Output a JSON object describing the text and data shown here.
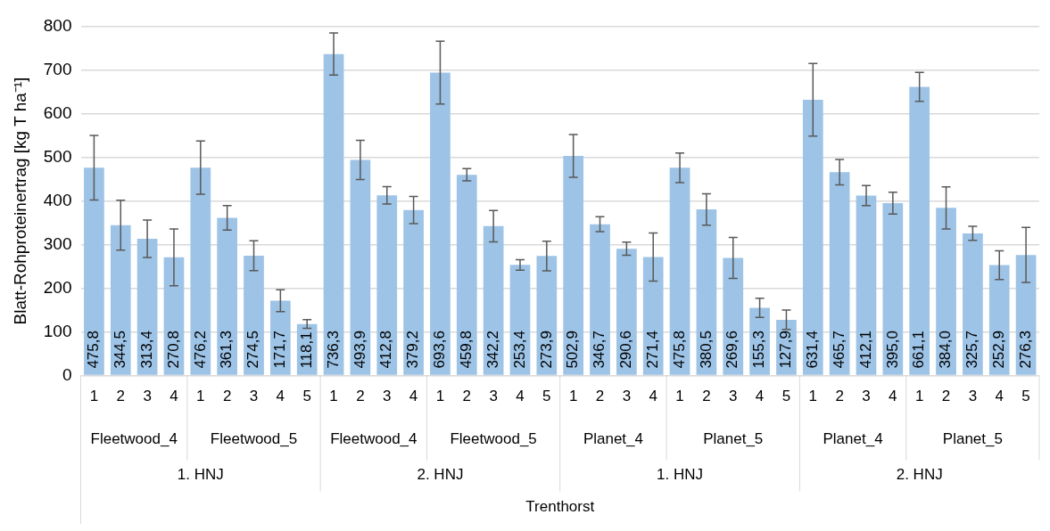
{
  "chart_data": {
    "type": "bar",
    "ylabel": "Blatt-Rohproteinertrag [kg T ha⁻¹]",
    "categories": [
      "1",
      "2",
      "3",
      "4",
      "1",
      "2",
      "3",
      "4",
      "5",
      "1",
      "2",
      "3",
      "4",
      "1",
      "2",
      "3",
      "4",
      "5",
      "1",
      "2",
      "3",
      "4",
      "1",
      "2",
      "3",
      "4",
      "5",
      "1",
      "2",
      "3",
      "4",
      "1",
      "2",
      "3",
      "4",
      "5"
    ],
    "values": [
      475.8,
      344.5,
      313.4,
      270.8,
      476.2,
      361.3,
      274.5,
      171.7,
      118.1,
      736.3,
      493.9,
      412.8,
      379.2,
      693.6,
      459.8,
      342.2,
      253.4,
      273.9,
      502.9,
      346.7,
      290.6,
      271.4,
      475.8,
      380.5,
      269.6,
      155.3,
      127.9,
      631.4,
      465.7,
      412.1,
      395.0,
      661.1,
      384.0,
      325.7,
      252.9,
      276.3
    ],
    "errors": [
      74,
      57,
      43,
      65,
      61,
      28,
      34,
      25,
      10,
      48,
      45,
      20,
      31,
      72,
      14,
      36,
      12,
      34,
      49,
      17,
      15,
      55,
      34,
      36,
      47,
      22,
      22,
      83,
      29,
      23,
      25,
      33,
      48,
      16,
      33,
      63
    ],
    "color": "#9dc3e6",
    "value_labels": [
      "475,8",
      "344,5",
      "313,4",
      "270,8",
      "476,2",
      "361,3",
      "274,5",
      "171,7",
      "118,1",
      "736,3",
      "493,9",
      "412,8",
      "379,2",
      "693,6",
      "459,8",
      "342,2",
      "253,4",
      "273,9",
      "502,9",
      "346,7",
      "290,6",
      "271,4",
      "475,8",
      "380,5",
      "269,6",
      "155,3",
      "127,9",
      "631,4",
      "465,7",
      "412,1",
      "395,0",
      "661,1",
      "384,0",
      "325,7",
      "252,9",
      "276,3"
    ],
    "annotations": [
      "Fleetwood_4",
      "Fleetwood_5",
      "Fleetwood_4",
      "Fleetwood_5",
      "Planet_4",
      "Planet_5",
      "Planet_4",
      "Planet_5",
      "1. HNJ",
      "2. HNJ",
      "1. HNJ",
      "2. HNJ",
      "Trenthorst"
    ],
    "ylim": [
      0,
      800
    ],
    "yticks": [
      0,
      100,
      200,
      300,
      400,
      500,
      600,
      700,
      800
    ],
    "grid": "y",
    "legend": false
  }
}
